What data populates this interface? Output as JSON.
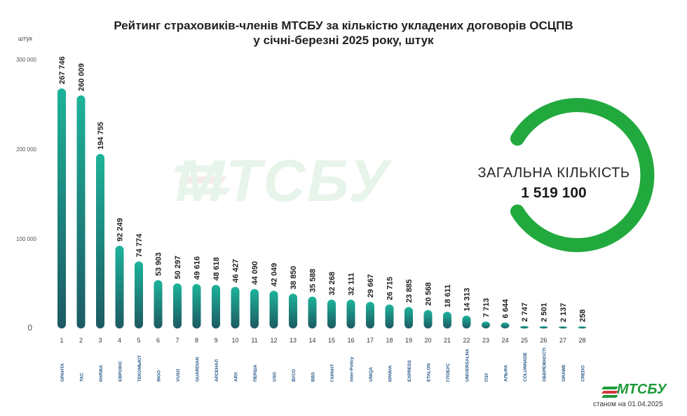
{
  "title_line1": "Рейтинг страховиків-членів МТСБУ за кількістю укладених договорів ОСЦПВ",
  "title_line2": "у січні-березні 2025 року, штук",
  "unit": "штук",
  "watermark": "МТСБУ",
  "total": {
    "label": "ЗАГАЛЬНА КІЛЬКІСТЬ",
    "value": "1 519 100"
  },
  "brand": "МТСБУ",
  "as_of": "станом на 01.04.2025",
  "colors": {
    "bar_top": "#1db39a",
    "bar_bottom": "#1d5a62",
    "ring": "#22a93e",
    "brand": "#1e9a3a"
  },
  "chart_data": {
    "type": "bar",
    "ylim": [
      0,
      300000
    ],
    "yticks": [
      0,
      100000,
      200000,
      300000
    ],
    "ytick_labels": [
      "0",
      "100 000",
      "200 000",
      "300 000"
    ],
    "grid": false,
    "categories": [
      "1",
      "2",
      "3",
      "4",
      "5",
      "6",
      "7",
      "8",
      "9",
      "10",
      "11",
      "12",
      "13",
      "14",
      "15",
      "16",
      "17",
      "18",
      "19",
      "20",
      "21",
      "22",
      "23",
      "24",
      "25",
      "26",
      "27",
      "28"
    ],
    "values": [
      267746,
      260009,
      194755,
      92249,
      74774,
      53903,
      50297,
      49616,
      48618,
      46427,
      44090,
      42049,
      38850,
      35588,
      32268,
      32111,
      29667,
      26715,
      23885,
      20568,
      18611,
      14313,
      7713,
      6644,
      2747,
      2501,
      2137,
      258
    ],
    "value_labels": [
      "267 746",
      "260 009",
      "194 755",
      "92 249",
      "74 774",
      "53 903",
      "50 297",
      "49 616",
      "48 618",
      "46 427",
      "44 090",
      "42 049",
      "38 850",
      "35 588",
      "32 268",
      "32 111",
      "29 667",
      "26 715",
      "23 885",
      "20 568",
      "18 611",
      "14 313",
      "7 713",
      "6 644",
      "2 747",
      "2 501",
      "2 137",
      "258"
    ],
    "company_logos": [
      "ОРАНТА",
      "ТАС",
      "КНЯЖА",
      "ЄВРОІНС",
      "ТЕКОМЬЮТ",
      "INGO",
      "VUSO",
      "GUARDIAN",
      "АРСЕНАЛ",
      "ARX",
      "ПЕРША",
      "USG",
      "ВУСО",
      "BBS",
      "ГАРАНТ",
      "Inter-Policy",
      "UNIQA",
      "КРАЇНА",
      "EXPRESS",
      "ETALON",
      "ГЛОБУС",
      "UNIVERSALNA",
      "ПЗУ",
      "АЛЬФА",
      "COLONNADE",
      "ОБЕРЕЖНОСТІ",
      "GRAWE",
      "CREDO"
    ]
  }
}
